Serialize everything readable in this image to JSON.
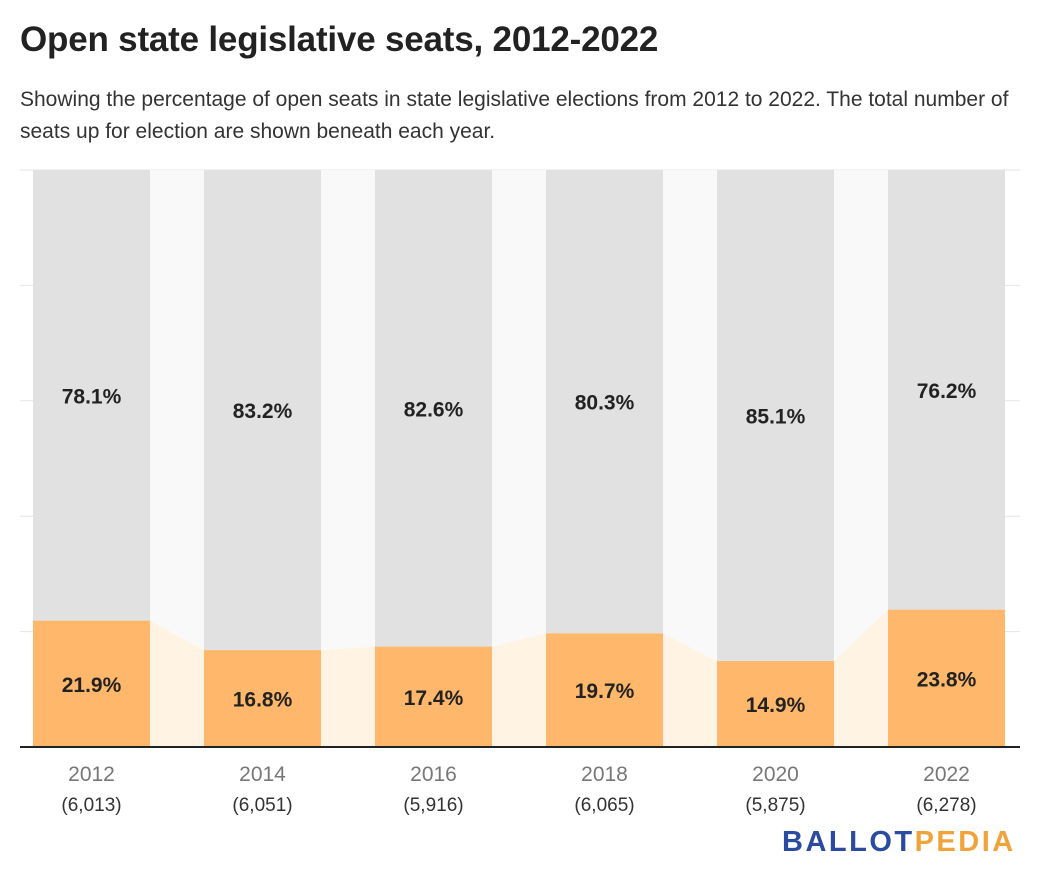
{
  "title": "Open state legislative seats, 2012-2022",
  "subtitle": "Showing the percentage of open seats in state legislative elections from 2012 to 2022. The total number of seats up for election are shown beneath each year.",
  "logo": {
    "part1": "BALLOT",
    "part2": "PEDIA"
  },
  "colors": {
    "open": "#ffb86b",
    "incumbent": "#e1e1e1",
    "open_band": "#fff3e4",
    "incumbent_band": "#f9f9f9",
    "axis": "#222222",
    "grid": "#e6e6e6"
  },
  "chart_data": {
    "type": "bar",
    "stacked": true,
    "percent_stacked": true,
    "categories": [
      "2012",
      "2014",
      "2016",
      "2018",
      "2020",
      "2022"
    ],
    "category_sublabels": [
      "(6,013)",
      "(6,051)",
      "(5,916)",
      "(6,065)",
      "(5,875)",
      "(6,278)"
    ],
    "series": [
      {
        "values": [
          21.9,
          16.8,
          17.4,
          19.7,
          14.9,
          23.8
        ],
        "labels": [
          "21.9%",
          "16.8%",
          "17.4%",
          "19.7%",
          "14.9%",
          "23.8%"
        ],
        "color": "#ffb86b"
      },
      {
        "values": [
          78.1,
          83.2,
          82.6,
          80.3,
          85.1,
          76.2
        ],
        "labels": [
          "78.1%",
          "83.2%",
          "82.6%",
          "80.3%",
          "85.1%",
          "76.2%"
        ],
        "color": "#e1e1e1"
      }
    ],
    "ylim": [
      0,
      100
    ],
    "grid": true,
    "legend": "none"
  }
}
